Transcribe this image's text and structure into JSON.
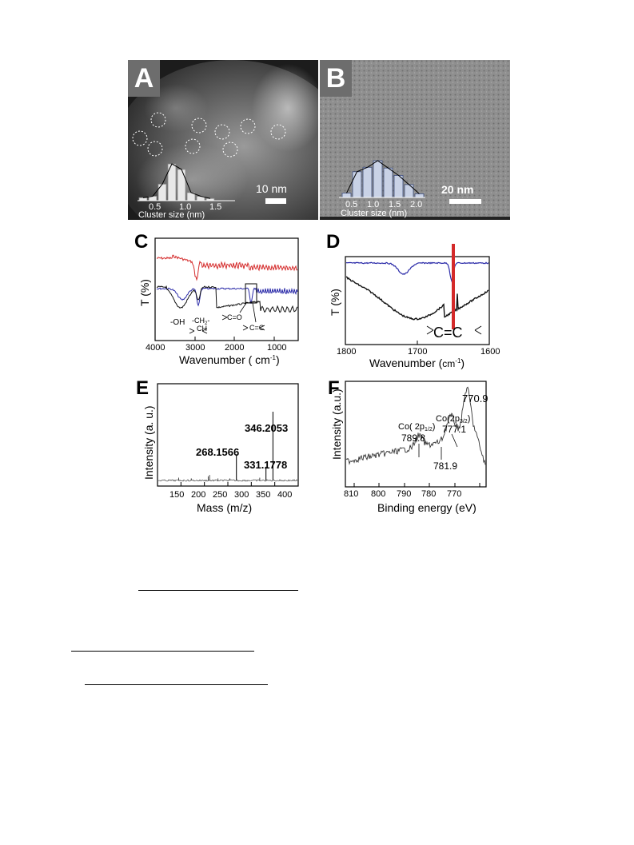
{
  "panels": {
    "A": {
      "label": "A",
      "scale_bar": "10 nm",
      "inset_ticks": [
        "0.5",
        "1.0",
        "1.5"
      ],
      "inset_xlabel": "Cluster size (nm)",
      "histogram": [
        0.08,
        0.12,
        0.45,
        1.0,
        0.85,
        0.22,
        0.12,
        0.06
      ]
    },
    "B": {
      "label": "B",
      "scale_bar": "20 nm",
      "inset_ticks": [
        "0.5",
        "1.0",
        "1.5",
        "2.0"
      ],
      "inset_xlabel": "Cluster size (nm)",
      "histogram": [
        0.12,
        0.7,
        0.82,
        1.0,
        0.8,
        0.6,
        0.35,
        0.1
      ]
    },
    "C": {
      "label": "C",
      "ylabel": "T (%)",
      "xlabel": "Wavenumber ( cm",
      "xlabel_sup": "-1",
      "xlabel_close": ")",
      "xticks": [
        "4000",
        "3000",
        "2000",
        "1000"
      ],
      "annotations": {
        "oh": "-OH",
        "ch2": "-CH",
        "ch2_sub": "2",
        "ch2_tail": "-",
        "ch": "CH",
        "co": "C=O",
        "cc": "C=C"
      },
      "colors": {
        "red": "#d42a2a",
        "blue": "#2a2aa8",
        "black": "#111111"
      }
    },
    "D": {
      "label": "D",
      "ylabel": "T (%)",
      "xlabel": "Wavenumber (",
      "xlabel_unit": "cm",
      "xlabel_sup": "-1",
      "xlabel_close": ")",
      "xticks": [
        "1800",
        "1700",
        "1600"
      ],
      "annotation": "C=C",
      "colors": {
        "blue": "#2a2aa8",
        "black": "#111111",
        "marker": "#d42a2a"
      }
    },
    "E": {
      "label": "E",
      "ylabel": "Intensity (a. u.)",
      "xlabel": "Mass (m/z)",
      "xticks": [
        "150",
        "200",
        "250",
        "300",
        "350",
        "400"
      ],
      "peak_labels": [
        "346.2053",
        "268.1566",
        "331.1778"
      ],
      "peaks": [
        {
          "mz": 346.2053,
          "rel": 1.0
        },
        {
          "mz": 268.1566,
          "rel": 0.38
        },
        {
          "mz": 331.1778,
          "rel": 0.2
        },
        {
          "mz": 211,
          "rel": 0.08
        },
        {
          "mz": 208,
          "rel": 0.06
        },
        {
          "mz": 145,
          "rel": 0.04
        },
        {
          "mz": 172,
          "rel": 0.03
        },
        {
          "mz": 229,
          "rel": 0.03
        },
        {
          "mz": 254,
          "rel": 0.03
        },
        {
          "mz": 318,
          "rel": 0.04
        }
      ]
    },
    "F": {
      "label": "F",
      "ylabel": "Intensity (a.u.)",
      "xlabel": "Binding energy (eV)",
      "xticks": [
        "810",
        "800",
        "790",
        "780",
        "770"
      ],
      "peak_top": "770.9",
      "co12": "Co( 2p",
      "co12_sub": "1/2",
      "co12_close": ")",
      "co12_value": "789.8",
      "co32": "Co(2p",
      "co32_sub": "3/2",
      "co32_close": ")",
      "co32_value": "777.1",
      "sat": "781.9"
    }
  }
}
